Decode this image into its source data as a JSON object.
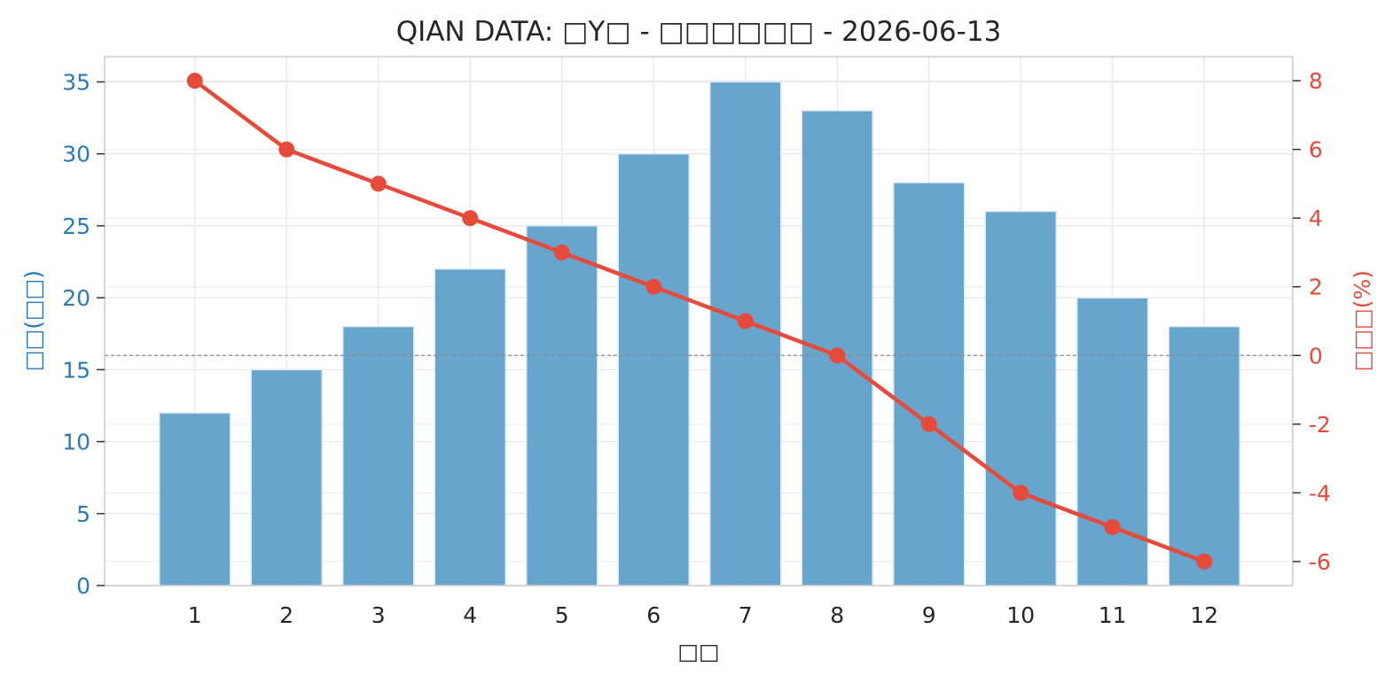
{
  "chart_data": {
    "type": "bar",
    "title": "QIAN DATA: □Y□ - □□□□□□ - 2026-06-13",
    "xlabel": "□□",
    "categories": [
      "1",
      "2",
      "3",
      "4",
      "5",
      "6",
      "7",
      "8",
      "9",
      "10",
      "11",
      "12"
    ],
    "series": [
      {
        "type": "bar",
        "axis": "left",
        "color": "#5b9ec9",
        "values": [
          12,
          15,
          18,
          22,
          25,
          30,
          35,
          33,
          28,
          26,
          20,
          18
        ]
      },
      {
        "type": "line",
        "axis": "right",
        "color": "#e64a3b",
        "marker": "circle",
        "values": [
          8,
          6,
          5,
          4,
          3,
          2,
          1,
          0,
          -2,
          -4,
          -5,
          -6
        ]
      }
    ],
    "y_left": {
      "label": "□□(□□)",
      "color": "#2a7ab5",
      "ylim": [
        0,
        36.75
      ],
      "ticks": [
        0,
        5,
        10,
        15,
        20,
        25,
        30,
        35
      ],
      "tick_labels": [
        "0",
        "5",
        "10",
        "15",
        "20",
        "25",
        "30",
        "35"
      ]
    },
    "y_right": {
      "label": "□□□(%)",
      "color": "#e64a3b",
      "ylim": [
        -6.7,
        8.7
      ],
      "ticks": [
        -6,
        -4,
        -2,
        0,
        2,
        4,
        6,
        8
      ],
      "tick_labels": [
        "-6",
        "-4",
        "-2",
        "0",
        "2",
        "4",
        "6",
        "8"
      ]
    },
    "reference_line": {
      "axis": "right",
      "value": 0,
      "style": "dashed",
      "color": "#888888"
    },
    "grid": true,
    "legend": "none"
  }
}
